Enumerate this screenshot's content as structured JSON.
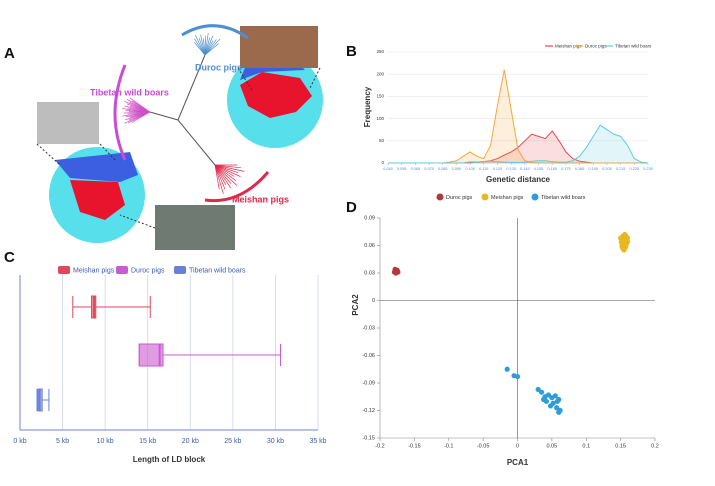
{
  "panel_labels": [
    "A",
    "B",
    "C",
    "D"
  ],
  "diagram": {
    "labels": [
      "Tibetan wild boars",
      "Duroc pigs",
      "Meishan pigs"
    ]
  },
  "chart_data": [
    {
      "type": "area-line",
      "x_label": "Genetic distance",
      "y_label": "Frequency",
      "x": [
        0.045,
        0.05,
        0.055,
        0.06,
        0.065,
        0.07,
        0.075,
        0.08,
        0.085,
        0.09,
        0.095,
        0.1,
        0.105,
        0.11,
        0.115,
        0.12,
        0.125,
        0.13,
        0.135,
        0.14,
        0.145,
        0.15,
        0.155,
        0.16,
        0.165,
        0.17,
        0.175,
        0.18,
        0.185,
        0.19,
        0.195,
        0.2,
        0.205,
        0.21,
        0.215,
        0.22,
        0.225,
        0.23,
        0.235
      ],
      "series": [
        {
          "name": "Meishan pigs",
          "color": "#e8474c",
          "values": [
            0,
            0,
            0,
            0,
            0,
            0,
            0,
            0,
            0,
            0,
            0,
            0,
            2,
            2,
            3,
            5,
            10,
            18,
            25,
            35,
            50,
            65,
            60,
            55,
            72,
            50,
            25,
            10,
            4,
            2,
            0,
            0,
            0,
            0,
            0,
            0,
            0,
            0,
            0
          ]
        },
        {
          "name": "Duroc pigs",
          "color": "#f2a93b",
          "values": [
            0,
            0,
            0,
            0,
            0,
            0,
            0,
            0,
            0,
            2,
            5,
            15,
            25,
            15,
            10,
            40,
            130,
            210,
            120,
            30,
            5,
            1,
            0,
            0,
            0,
            0,
            0,
            0,
            0,
            0,
            0,
            0,
            0,
            0,
            0,
            0,
            0,
            0,
            0
          ]
        },
        {
          "name": "Tibetan wild boars",
          "color": "#5ccbe0",
          "values": [
            0,
            0,
            0,
            0,
            0,
            0,
            0,
            0,
            0,
            0,
            0,
            0,
            0,
            2,
            3,
            4,
            3,
            2,
            1,
            1,
            2,
            4,
            5,
            5,
            3,
            2,
            2,
            5,
            15,
            35,
            60,
            85,
            75,
            65,
            60,
            40,
            10,
            2,
            0
          ]
        }
      ],
      "xlim": [
        0.045,
        0.235
      ],
      "xticks": [
        0.045,
        0.055,
        0.065,
        0.075,
        0.085,
        0.095,
        0.105,
        0.115,
        0.125,
        0.135,
        0.145,
        0.155,
        0.165,
        0.175,
        0.185,
        0.195,
        0.205,
        0.215,
        0.225,
        0.235
      ],
      "ylim": [
        0,
        250
      ],
      "yticks": [
        0,
        50,
        100,
        150,
        200,
        250
      ],
      "grid": true,
      "legend": "top-right"
    },
    {
      "type": "boxplot",
      "orientation": "horizontal",
      "x_label": "Length of LD block",
      "series": [
        {
          "name": "Meishan pigs",
          "color": "#e0475b",
          "min": 6.2,
          "q1": 8.4,
          "median": 8.7,
          "q3": 8.9,
          "max": 15.3
        },
        {
          "name": "Duroc pigs",
          "color": "#c95ad0",
          "min": 14.0,
          "q1": 14.0,
          "median": 16.4,
          "q3": 16.8,
          "max": 30.6
        },
        {
          "name": "Tibetan wild boars",
          "color": "#6a7fd8",
          "min": 2.0,
          "q1": 2.1,
          "median": 2.3,
          "q3": 2.6,
          "max": 3.4
        }
      ],
      "xlim": [
        0,
        35
      ],
      "xticks": [
        {
          "value": 0,
          "label": "0 kb"
        },
        {
          "value": 5,
          "label": "5 kb"
        },
        {
          "value": 10,
          "label": "10 kb"
        },
        {
          "value": 15,
          "label": "15 kb"
        },
        {
          "value": 20,
          "label": "20 kb"
        },
        {
          "value": 25,
          "label": "25 kb"
        },
        {
          "value": 30,
          "label": "30 kb"
        },
        {
          "value": 35,
          "label": "35 kb"
        }
      ],
      "grid": true,
      "legend": "top"
    },
    {
      "type": "scatter",
      "x_label": "PCA1",
      "y_label": "PCA2",
      "series": [
        {
          "name": "Duroc pigs",
          "color": "#b03a3a",
          "x": [
            -0.178,
            -0.176,
            -0.174,
            -0.177,
            -0.175,
            -0.179
          ],
          "y": [
            0.034,
            0.032,
            0.031,
            0.03,
            0.033,
            0.031
          ]
        },
        {
          "name": "Meishan pigs",
          "color": "#e8b820",
          "x": [
            0.15,
            0.153,
            0.156,
            0.158,
            0.16,
            0.152,
            0.155,
            0.157,
            0.154,
            0.159,
            0.151,
            0.156,
            0.153,
            0.158,
            0.155,
            0.157,
            0.154,
            0.152,
            0.16,
            0.156
          ],
          "y": [
            0.068,
            0.07,
            0.072,
            0.066,
            0.064,
            0.062,
            0.06,
            0.058,
            0.065,
            0.069,
            0.064,
            0.067,
            0.057,
            0.061,
            0.055,
            0.071,
            0.063,
            0.059,
            0.068,
            0.062
          ]
        },
        {
          "name": "Tibetan wild boars",
          "color": "#2d9cdb",
          "x": [
            -0.015,
            -0.005,
            0,
            0.03,
            0.035,
            0.04,
            0.045,
            0.038,
            0.05,
            0.055,
            0.058,
            0.06,
            0.052,
            0.048,
            0.062,
            0.042,
            0.057,
            0.06
          ],
          "y": [
            -0.075,
            -0.082,
            -0.083,
            -0.097,
            -0.1,
            -0.105,
            -0.103,
            -0.108,
            -0.106,
            -0.104,
            -0.11,
            -0.108,
            -0.112,
            -0.115,
            -0.12,
            -0.11,
            -0.117,
            -0.122
          ]
        }
      ],
      "xlim": [
        -0.2,
        0.2
      ],
      "xticks": [
        -0.2,
        -0.15,
        -0.1,
        -0.05,
        0,
        0.05,
        0.1,
        0.15,
        0.2
      ],
      "ylim": [
        -0.15,
        0.09
      ],
      "yticks": [
        -0.15,
        -0.12,
        -0.09,
        -0.06,
        -0.03,
        0,
        0.03,
        0.06,
        0.09
      ],
      "legend": "top-left"
    }
  ]
}
